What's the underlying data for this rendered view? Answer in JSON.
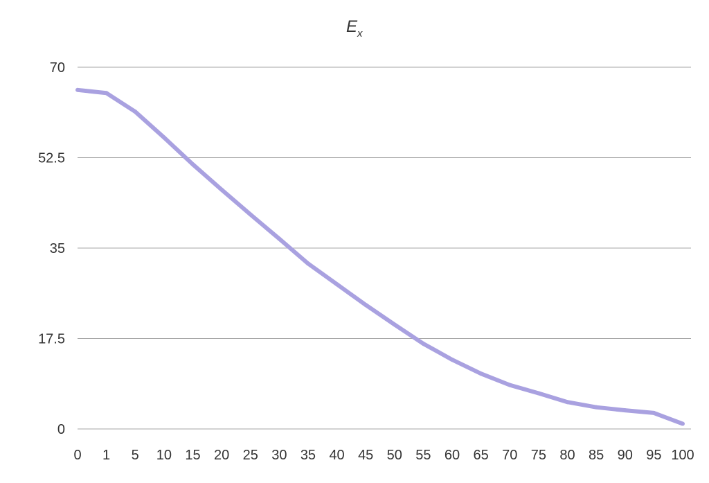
{
  "chart_data": {
    "type": "line",
    "title": "E",
    "title_subscript": "x",
    "xlabel": "",
    "ylabel": "",
    "categories": [
      "0",
      "1",
      "5",
      "10",
      "15",
      "20",
      "25",
      "30",
      "35",
      "40",
      "45",
      "50",
      "55",
      "60",
      "65",
      "70",
      "75",
      "80",
      "85",
      "90",
      "95",
      "100"
    ],
    "series": [
      {
        "values": [
          65.6,
          65.0,
          61.4,
          56.4,
          51.2,
          46.3,
          41.5,
          36.8,
          32.0,
          28.0,
          24.0,
          20.2,
          16.5,
          13.4,
          10.7,
          8.5,
          6.9,
          5.2,
          4.2,
          3.6,
          3.1,
          1.0
        ],
        "color": "#a9a1e0"
      }
    ],
    "ylim": [
      0,
      70
    ],
    "yticks": [
      "0",
      "17.5",
      "35",
      "52.5",
      "70"
    ],
    "grid": true,
    "legend": "none"
  }
}
